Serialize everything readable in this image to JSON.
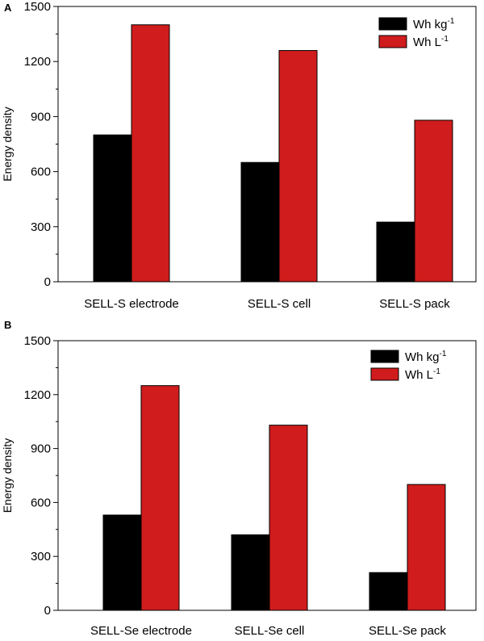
{
  "colors": {
    "series1": "#000000",
    "series2": "#d01c1c",
    "axis": "#000000"
  },
  "chart_data": [
    {
      "type": "bar",
      "panel": "A",
      "title": "",
      "xlabel": "",
      "ylabel": "Energy density",
      "ylim": [
        0,
        1500
      ],
      "yticks": [
        0,
        300,
        600,
        900,
        1200,
        1500
      ],
      "categories": [
        "SELL-S electrode",
        "SELL-S cell",
        "SELL-S pack"
      ],
      "legend_position": "top-right",
      "series": [
        {
          "name": "Wh kg",
          "sup": "-1",
          "color": "#000000",
          "values": [
            800,
            650,
            325
          ]
        },
        {
          "name": "Wh L",
          "sup": "-1",
          "color": "#d01c1c",
          "values": [
            1400,
            1260,
            880
          ]
        }
      ]
    },
    {
      "type": "bar",
      "panel": "B",
      "title": "",
      "xlabel": "",
      "ylabel": "Energy density",
      "ylim": [
        0,
        1500
      ],
      "yticks": [
        0,
        300,
        600,
        900,
        1200,
        1500
      ],
      "categories": [
        "SELL-Se electrode",
        "SELL-Se cell",
        "SELL-Se pack"
      ],
      "legend_position": "top-right",
      "series": [
        {
          "name": "Wh kg",
          "sup": "-1",
          "color": "#000000",
          "values": [
            530,
            420,
            210
          ]
        },
        {
          "name": "Wh L",
          "sup": "-1",
          "color": "#d01c1c",
          "values": [
            1250,
            1030,
            700
          ]
        }
      ]
    }
  ]
}
